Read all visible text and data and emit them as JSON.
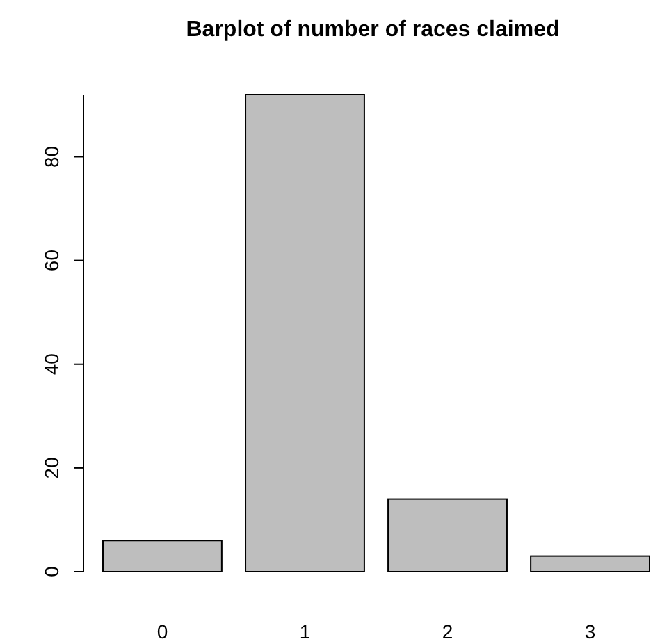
{
  "chart_data": {
    "type": "bar",
    "title": "Barplot of number of races claimed",
    "categories": [
      "0",
      "1",
      "2",
      "3"
    ],
    "values": [
      6,
      92,
      14,
      3
    ],
    "color": "#bebebe",
    "ylim": [
      0,
      92
    ],
    "yticks": [
      0,
      20,
      40,
      60,
      80
    ],
    "grid": false
  }
}
